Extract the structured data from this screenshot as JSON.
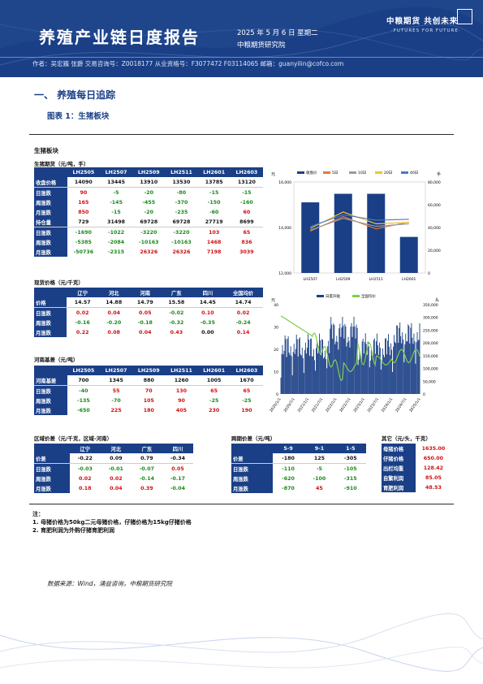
{
  "header": {
    "title": "养殖产业链日度报告",
    "date": "2025 年 5 月 6 日 星期二",
    "institute": "中粮期货研究院",
    "brand_cn": "中粮期货  共创未来",
    "brand_en": "·FUTURES FOR FUTURE·",
    "authors": "作者：吴宏巍  张爵  交易咨询号：Z0018177 从业资格号：F3077472 F03114065 邮箱：guanyilin@cofco.com"
  },
  "section1": "一、    养殖每日追踪",
  "figure1": "图表 1：生猪板块",
  "block_title": "生猪板块",
  "futures": {
    "subtitle": "生猪期货（元/吨，手）",
    "headers": [
      "",
      "LH2505",
      "LH2507",
      "LH2509",
      "LH2511",
      "LH2601",
      "LH2603"
    ],
    "rows": [
      {
        "label": "收盘价格",
        "values": [
          "14090",
          "13445",
          "13910",
          "13530",
          "13785",
          "13120"
        ],
        "dark": true
      },
      {
        "label": "日涨跌",
        "values": [
          "90",
          "-5",
          "-20",
          "-80",
          "-15",
          "-15"
        ]
      },
      {
        "label": "周涨跌",
        "values": [
          "165",
          "-145",
          "-455",
          "-370",
          "-150",
          "-160"
        ]
      },
      {
        "label": "月涨跌",
        "values": [
          "850",
          "-15",
          "-20",
          "-235",
          "-60",
          "60"
        ]
      },
      {
        "label": "持仓量",
        "values": [
          "729",
          "31498",
          "69728",
          "69728",
          "27719",
          "8699"
        ],
        "dark": true
      },
      {
        "label": "日涨跌",
        "values": [
          "-1690",
          "-1022",
          "-3220",
          "-3220",
          "103",
          "65"
        ]
      },
      {
        "label": "周涨跌",
        "values": [
          "-5385",
          "-2084",
          "-10163",
          "-10163",
          "1468",
          "836"
        ]
      },
      {
        "label": "月涨跌",
        "values": [
          "-50736",
          "-2315",
          "26326",
          "26326",
          "7198",
          "3039"
        ]
      }
    ]
  },
  "spot": {
    "subtitle": "现货价格（元/千克）",
    "headers": [
      "",
      "辽宁",
      "河北",
      "河南",
      "广东",
      "四川",
      "全国均价"
    ],
    "rows": [
      {
        "label": "价格",
        "values": [
          "14.57",
          "14.88",
          "14.79",
          "15.58",
          "14.45",
          "14.74"
        ],
        "dark": true
      },
      {
        "label": "日涨跌",
        "values": [
          "0.02",
          "0.04",
          "0.05",
          "-0.02",
          "0.10",
          "0.02"
        ]
      },
      {
        "label": "周涨跌",
        "values": [
          "-0.16",
          "-0.20",
          "-0.18",
          "-0.32",
          "-0.35",
          "-0.24"
        ]
      },
      {
        "label": "月涨跌",
        "values": [
          "0.22",
          "0.08",
          "0.04",
          "0.43",
          "0.00",
          "0.14"
        ]
      }
    ]
  },
  "basis": {
    "subtitle": "河南基差（元/吨）",
    "headers": [
      "",
      "LH2505",
      "LH2507",
      "LH2509",
      "LH2511",
      "LH2601",
      "LH2603"
    ],
    "rows": [
      {
        "label": "河南基差",
        "values": [
          "700",
          "1345",
          "880",
          "1260",
          "1005",
          "1670"
        ],
        "dark": true
      },
      {
        "label": "日涨跌",
        "values": [
          "-40",
          "55",
          "70",
          "130",
          "65",
          "65"
        ]
      },
      {
        "label": "周涨跌",
        "values": [
          "-135",
          "-70",
          "105",
          "90",
          "-25",
          "-25"
        ]
      },
      {
        "label": "月涨跌",
        "values": [
          "-650",
          "225",
          "180",
          "405",
          "230",
          "190"
        ]
      }
    ]
  },
  "regional": {
    "subtitle": "区域价差（元/千克，区域-河南）",
    "headers": [
      "",
      "辽宁",
      "河北",
      "广东",
      "四川"
    ],
    "rows": [
      {
        "label": "价差",
        "values": [
          "-0.22",
          "0.09",
          "0.79",
          "-0.34"
        ],
        "dark": true
      },
      {
        "label": "日涨跌",
        "values": [
          "-0.03",
          "-0.01",
          "-0.07",
          "0.05"
        ]
      },
      {
        "label": "周涨跌",
        "values": [
          "0.02",
          "0.02",
          "-0.14",
          "-0.17"
        ]
      },
      {
        "label": "月涨跌",
        "values": [
          "0.18",
          "0.04",
          "0.39",
          "-0.04"
        ]
      }
    ]
  },
  "spread": {
    "subtitle": "跨期价差（元/吨）",
    "headers": [
      "",
      "5-9",
      "9-1",
      "1-5"
    ],
    "rows": [
      {
        "label": "价差",
        "values": [
          "-180",
          "125",
          "-305"
        ],
        "dark": true
      },
      {
        "label": "日涨跌",
        "values": [
          "-110",
          "-5",
          "-105"
        ]
      },
      {
        "label": "周涨跌",
        "values": [
          "-620",
          "-100",
          "-315"
        ]
      },
      {
        "label": "月涨跌",
        "values": [
          "-870",
          "45",
          "-910"
        ]
      }
    ]
  },
  "others": {
    "subtitle": "其它（元/头，千克）",
    "rows": [
      {
        "label": "母猪价格",
        "value": "1635.00"
      },
      {
        "label": "仔猪价格",
        "value": "650.00"
      },
      {
        "label": "出栏均重",
        "value": "128.42"
      },
      {
        "label": "自繁利润",
        "value": "85.05"
      },
      {
        "label": "育肥利润",
        "value": "48.53"
      }
    ]
  },
  "notes": {
    "title": "注：",
    "items": [
      "1. 母猪价格为50kg二元母猪价格，仔猪价格为15kg仔猪价格",
      "2. 育肥利润为外购仔猪育肥利润"
    ]
  },
  "source": "数据来源：Wind，涌益咨询，中粮期货研究院",
  "chart_data": [
    {
      "type": "bar",
      "title": "",
      "legend": [
        "收盘价",
        "5日",
        "10日",
        "20日",
        "40日"
      ],
      "legend_colors": [
        "#1a3f86",
        "#e07b39",
        "#9b9b9b",
        "#f2c230",
        "#4a78c9"
      ],
      "categories": [
        "LH2507",
        "LH2509",
        "LH2511",
        "LH2601"
      ],
      "y_left_ticks": [
        "12,000",
        "14,000",
        "16,000"
      ],
      "y_right_ticks": [
        "0",
        "20,000",
        "40,000",
        "60,000",
        "80,000"
      ],
      "y_left_label": "元",
      "y_right_label": "手",
      "bar_values": [
        14880,
        15350,
        15350,
        12980
      ],
      "series": [
        {
          "name": "5日",
          "values": [
            13300,
            14100,
            13420,
            13800
          ]
        },
        {
          "name": "10日",
          "values": [
            13350,
            14000,
            13560,
            13700
          ]
        },
        {
          "name": "20日",
          "values": [
            13450,
            14350,
            13700,
            13780
          ]
        },
        {
          "name": "40日",
          "values": [
            13550,
            14200,
            13900,
            13950
          ]
        }
      ],
      "ylim_left": [
        11000,
        16000
      ]
    },
    {
      "type": "area",
      "title": "",
      "legend": [
        "日度升贴",
        "全国均价"
      ],
      "legend_colors": [
        "#1a3f86",
        "#7ccf4a"
      ],
      "y_left_label": "元",
      "y_right_label": "头",
      "y_left_ticks": [
        "0",
        "10",
        "20",
        "30",
        "40"
      ],
      "y_right_ticks": [
        "0",
        "50,000",
        "100,000",
        "150,000",
        "200,000",
        "250,000",
        "300,000",
        "350,000"
      ],
      "x_ticks": [
        "2020/1/1",
        "2020/7/1",
        "2021/1/1",
        "2021/7/1",
        "2022/1/1",
        "2022/7/1",
        "2023/1/1",
        "2023/7/1",
        "2024/1/1",
        "2024/7/1",
        "2025/1/1"
      ]
    }
  ]
}
